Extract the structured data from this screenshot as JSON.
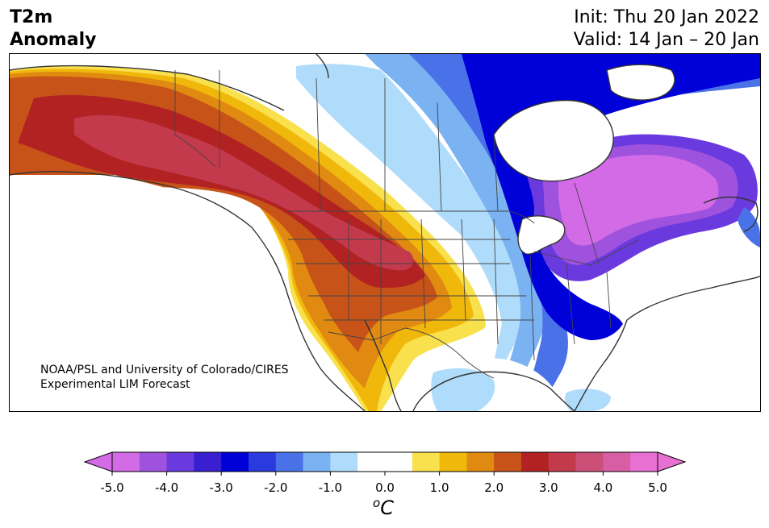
{
  "header": {
    "variable_line1": "T2m",
    "variable_line2": "Anomaly",
    "init": "Init: Thu 20 Jan 2022",
    "valid": "Valid: 14 Jan – 20 Jan"
  },
  "credit": {
    "line1": "NOAA/PSL and University of Colorado/CIRES",
    "line2": "Experimental LIM Forecast"
  },
  "colorbar": {
    "ticks": [
      "-5.0",
      "-4.0",
      "-3.0",
      "-2.0",
      "-1.0",
      "0.0",
      "1.0",
      "2.0",
      "3.0",
      "4.0",
      "5.0"
    ],
    "unit_symbol": "o",
    "unit_letter": "C",
    "range": [
      -5.0,
      5.0
    ],
    "step": 0.5,
    "colors": [
      "#d36be6",
      "#9f52de",
      "#6a3ade",
      "#3a1fd1",
      "#0000d8",
      "#2a3adf",
      "#4a72e8",
      "#7ab2f2",
      "#b0dcfb",
      "#ffffff",
      "#ffffff",
      "#f9e14e",
      "#f1b80c",
      "#e08a12",
      "#c75318",
      "#b22222",
      "#c33a4d",
      "#cc4f78",
      "#d85ea4",
      "#e870d2"
    ],
    "extend_min_color": "#d36be6",
    "extend_max_color": "#e870d2"
  },
  "map": {
    "region": "North America",
    "units": "°C",
    "colors": {
      "ocean": "#ffffff",
      "land_neutral": "#ffffff",
      "warm_1": "#f9e14e",
      "warm_2": "#f1b80c",
      "warm_3": "#e08a12",
      "warm_4": "#c75318",
      "warm_5": "#b22222",
      "warm_6": "#c33a4d",
      "cool_1": "#b0dcfb",
      "cool_2": "#7ab2f2",
      "cool_3": "#4a72e8",
      "cool_4": "#2a3adf",
      "cool_5": "#0000d8",
      "cool_6": "#6a3ade",
      "cool_7": "#9f52de",
      "cool_8": "#d36be6"
    }
  }
}
